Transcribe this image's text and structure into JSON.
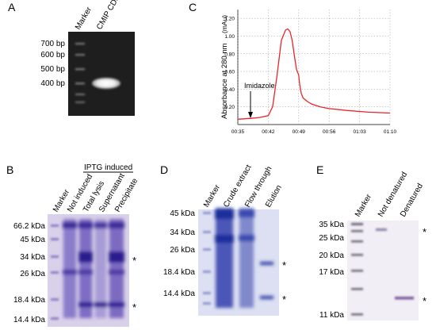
{
  "panels": {
    "A": {
      "letter": "A",
      "lane_labels": [
        "Marker",
        "CMIP CDS"
      ],
      "size_labels": [
        "700 bp",
        "600 bp",
        "500 bp",
        "400 bp"
      ]
    },
    "B": {
      "letter": "B",
      "lane_labels": [
        "Marker",
        "Not induced",
        "Total lysis",
        "Supernatant",
        "Precipitate"
      ],
      "group_label": "IPTG induced",
      "size_labels": [
        "66.2 kDa",
        "45 kDa",
        "34 kDa",
        "26 kDa",
        "18.4 kDa",
        "14.4 kDa"
      ],
      "star": "*"
    },
    "C": {
      "letter": "C",
      "annotation": "Imidazole",
      "chart_data": {
        "type": "line",
        "ylabel": "Absorbance at 280 nm",
        "yunit": "(mAu)",
        "x_ticks": [
          "00:35",
          "00:42",
          "00:49",
          "00:56",
          "01:03",
          "01:10"
        ],
        "y_ticks": [
          "0.20",
          "0.40",
          "0.60",
          "0.80",
          "1.00",
          "1.20"
        ],
        "xlim_min": [
          35,
          70
        ],
        "ylim": [
          0.0,
          1.3
        ],
        "grid": true,
        "line_color": "#e8242a",
        "series": [
          {
            "x": [
              35,
              38,
              40,
              42,
              43,
              44,
              45,
              46,
              46.5,
              47,
              47.5,
              48,
              48.5,
              49,
              49.2,
              49.6,
              50,
              51,
              52,
              54,
              56,
              60,
              65,
              70
            ],
            "y": [
              0.06,
              0.07,
              0.08,
              0.1,
              0.2,
              0.55,
              0.95,
              1.07,
              1.08,
              1.05,
              0.95,
              0.78,
              0.62,
              0.56,
              0.46,
              0.35,
              0.3,
              0.26,
              0.23,
              0.2,
              0.18,
              0.16,
              0.14,
              0.13
            ]
          }
        ]
      }
    },
    "D": {
      "letter": "D",
      "lane_labels": [
        "Marker",
        "Crude extract",
        "Flow through",
        "Elution"
      ],
      "size_labels": [
        "45 kDa",
        "34 kDa",
        "26 kDa",
        "18.4 kDa",
        "14.4 kDa"
      ],
      "star": "*"
    },
    "E": {
      "letter": "E",
      "lane_labels": [
        "Marker",
        "Not denatured",
        "Denatured"
      ],
      "size_labels": [
        "35 kDa",
        "25 kDa",
        "20 kDa",
        "17 kDa",
        "11 kDa"
      ],
      "star": "*"
    }
  }
}
